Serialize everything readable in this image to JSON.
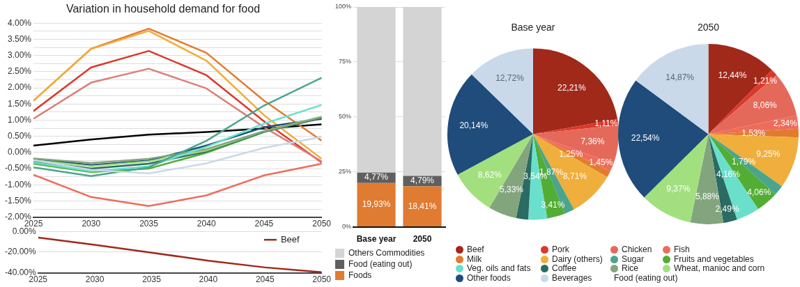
{
  "chart_data": [
    {
      "type": "line",
      "title": "Variation in household demand for food",
      "x": [
        2025,
        2030,
        2035,
        2040,
        2045,
        2050
      ],
      "xlim": [
        2025,
        2050
      ],
      "xticks": [
        2025,
        2030,
        2035,
        2040,
        2045,
        2050
      ],
      "ylim": [
        -2,
        4
      ],
      "yticks": [
        {
          "value": -2,
          "label": "-2.00%"
        },
        {
          "value": -1.75,
          "label": null
        },
        {
          "value": -1.5,
          "label": "-1.50%"
        },
        {
          "value": -1.25,
          "label": null
        },
        {
          "value": -1,
          "label": "-1.00%"
        },
        {
          "value": -0.75,
          "label": null
        },
        {
          "value": -0.5,
          "label": "-0.50%"
        },
        {
          "value": -0.25,
          "label": null
        },
        {
          "value": 0,
          "label": "0.00%"
        },
        {
          "value": 0.25,
          "label": null
        },
        {
          "value": 0.5,
          "label": "0.50%"
        },
        {
          "value": 0.75,
          "label": null
        },
        {
          "value": 1,
          "label": "1.00%"
        },
        {
          "value": 1.25,
          "label": null
        },
        {
          "value": 1.5,
          "label": "1.50%"
        },
        {
          "value": 1.75,
          "label": null
        },
        {
          "value": 2,
          "label": "2.00%"
        },
        {
          "value": 2.25,
          "label": null
        },
        {
          "value": 2.5,
          "label": "2.50%"
        },
        {
          "value": 2.75,
          "label": null
        },
        {
          "value": 3,
          "label": "3.00%"
        },
        {
          "value": 3.25,
          "label": null
        },
        {
          "value": 3.5,
          "label": "3.50%"
        },
        {
          "value": 3.75,
          "label": null
        },
        {
          "value": 4,
          "label": "4.00%"
        }
      ],
      "grid": "y",
      "series": [
        {
          "color": "#c9d9ea",
          "values": [
            -0.24,
            -0.54,
            -0.65,
            -0.34,
            0.14,
            0.48
          ]
        },
        {
          "color": "#4aa58c",
          "values": [
            -0.46,
            -0.73,
            -0.46,
            0.36,
            1.45,
            2.31
          ]
        },
        {
          "color": "#6ae0cc",
          "values": [
            -0.31,
            -0.58,
            -0.43,
            0.17,
            0.89,
            1.47
          ]
        },
        {
          "color": "#82a57e",
          "values": [
            -0.19,
            -0.33,
            -0.2,
            0.1,
            0.66,
            1.09
          ]
        },
        {
          "color": "#a2e07f",
          "values": [
            -0.24,
            -0.43,
            -0.28,
            0.06,
            0.66,
            1.11
          ]
        },
        {
          "color": "#2b6b63",
          "values": [
            -0.28,
            -0.5,
            -0.35,
            0.03,
            0.64,
            1.06
          ]
        },
        {
          "color": "#1f4c7a",
          "values": [
            -0.2,
            -0.39,
            -0.25,
            0.21,
            0.78,
            1.04
          ]
        },
        {
          "color": "#52ad35",
          "values": [
            -0.35,
            -0.61,
            -0.5,
            -0.01,
            0.63,
            1.08
          ]
        },
        {
          "color": "#ee6c5a",
          "values": [
            -0.69,
            -1.38,
            -1.66,
            -1.33,
            -0.71,
            -0.35
          ]
        },
        {
          "color": "#d98078",
          "values": [
            1.04,
            2.16,
            2.59,
            1.98,
            0.78,
            -0.28
          ]
        },
        {
          "color": "#d93a2b",
          "values": [
            1.28,
            2.63,
            3.14,
            2.39,
            0.96,
            -0.31
          ]
        },
        {
          "color": "#f0ae3c",
          "values": [
            1.6,
            3.2,
            3.76,
            2.84,
            1.15,
            -0.2
          ]
        },
        {
          "color": "#e37b2e",
          "values": [
            1.6,
            3.21,
            3.83,
            3.08,
            1.6,
            0.36
          ]
        },
        {
          "name": "Food (eating out)",
          "color": "#000000",
          "values": [
            0.21,
            0.4,
            0.55,
            0.63,
            0.74,
            0.87
          ]
        }
      ]
    },
    {
      "type": "line",
      "x": [
        2025,
        2030,
        2035,
        2040,
        2045,
        2050
      ],
      "xlim": [
        2025,
        2050
      ],
      "xticks": [
        2025,
        2030,
        2035,
        2040,
        2045,
        2050
      ],
      "ylim": [
        -40,
        0
      ],
      "yticks": [
        {
          "value": -40,
          "label": "-40.00%"
        },
        {
          "value": -20,
          "label": "-20.00%"
        },
        {
          "value": 0,
          "label": "0.00%"
        }
      ],
      "grid": "y",
      "legend": "top right",
      "series": [
        {
          "name": "Beef",
          "color": "#a0291a",
          "values": [
            -6,
            -13,
            -20.5,
            -28.3,
            -34.8,
            -39.5
          ]
        }
      ]
    },
    {
      "type": "bar",
      "stacked": true,
      "categories": [
        "Base year",
        "2050"
      ],
      "ylim": [
        0,
        100
      ],
      "yticks": [
        {
          "value": 0,
          "label": "0%"
        },
        {
          "value": 25,
          "label": "25%"
        },
        {
          "value": 50,
          "label": "50%"
        },
        {
          "value": 75,
          "label": "75%"
        },
        {
          "value": 100,
          "label": "100%"
        }
      ],
      "grid": "y",
      "legend": "bottom",
      "series": [
        {
          "name": "Foods",
          "color": "#e07b32",
          "values": [
            19.93,
            18.41
          ],
          "value_labels": [
            "19,93%",
            "18,41%"
          ]
        },
        {
          "name": "Food (eating out)",
          "color": "#5f5f5f",
          "values": [
            4.77,
            4.79
          ],
          "value_labels": [
            "4,77%",
            "4,79%"
          ]
        },
        {
          "name": "Others Commodities",
          "color": "#d4d4d4",
          "values": [
            75.3,
            76.8
          ]
        }
      ]
    },
    {
      "type": "pie",
      "title": "Base year",
      "legend": "bottom",
      "categories": [
        "Beef",
        "Pork",
        "Chicken",
        "Fish",
        "Milk",
        "Dairy (others)",
        "Sugar",
        "Fruits and vegetables",
        "Veg. oils and fats",
        "Coffee",
        "Rice",
        "Wheat, manioc and corn",
        "Other foods",
        "Beverages"
      ],
      "values": [
        22.21,
        1.11,
        7.36,
        1.45,
        1.25,
        8.71,
        1.87,
        3.41,
        3.54,
        2.28,
        5.33,
        8.62,
        20.14,
        12.72
      ],
      "value_labels": [
        "22,21%",
        "1,11%",
        "7,36%",
        "1,45%",
        "1,25%",
        "8,71%",
        "1,87%",
        "3,41%",
        "3,54%",
        null,
        "5,33%",
        "8,62%",
        "20,14%",
        "12,72%"
      ],
      "colors": [
        "#a0291a",
        "#d93a2b",
        "#e5695a",
        "#ee6c5a",
        "#e37b2e",
        "#f0ae3c",
        "#4aa58c",
        "#52ad35",
        "#6ae0cc",
        "#2b6b63",
        "#82a57e",
        "#a2e07f",
        "#1f4c7a",
        "#c9d9ea"
      ]
    },
    {
      "type": "pie",
      "title": "2050",
      "categories": [
        null,
        null,
        null,
        null,
        null,
        null,
        null,
        null,
        null,
        null,
        null,
        null,
        null,
        null
      ],
      "values": [
        12.44,
        1.21,
        8.06,
        2.34,
        1.53,
        9.25,
        1.79,
        4.06,
        4.16,
        2.49,
        5.88,
        9.37,
        22.54,
        14.87
      ],
      "value_labels": [
        "12,44%",
        "1,21%",
        "8,06%",
        "2,34%",
        "1,53%",
        "9,25%",
        "1,79%",
        "4,06%",
        "4,16%",
        "2,49%",
        "5,88%",
        "9,37%",
        "22,54%",
        "14,87%"
      ],
      "colors": [
        "#a0291a",
        "#d93a2b",
        "#e5695a",
        "#ee6c5a",
        "#e37b2e",
        "#f0ae3c",
        "#4aa58c",
        "#52ad35",
        "#6ae0cc",
        "#2b6b63",
        "#82a57e",
        "#a2e07f",
        "#1f4c7a",
        "#c9d9ea"
      ]
    }
  ]
}
